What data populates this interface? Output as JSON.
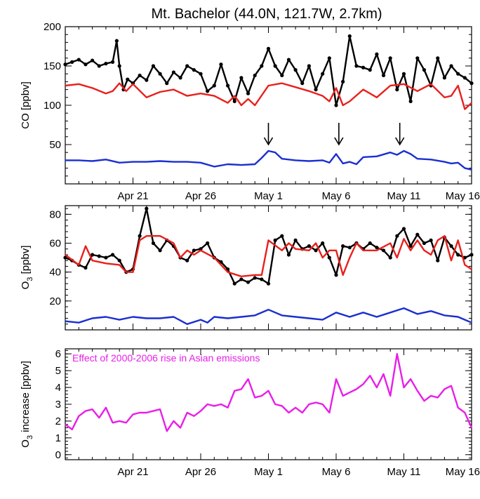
{
  "title": "Mt. Bachelor (44.0N, 121.7W, 2.7km)",
  "colors": {
    "observed": "#000000",
    "model_total": "#e8201c",
    "model_asian": "#1a2fd0",
    "effect": "#e81ee8"
  },
  "chart_data": [
    {
      "type": "line",
      "ylabel": "CO [ppbv]",
      "xlim": [
        0,
        30
      ],
      "ylim": [
        0,
        200
      ],
      "yticks": [
        50,
        100,
        150,
        200
      ],
      "xticks": [
        {
          "value": 5,
          "label": "Apr 21"
        },
        {
          "value": 10,
          "label": "Apr 26"
        },
        {
          "value": 15,
          "label": "May 1"
        },
        {
          "value": 20,
          "label": "May 6"
        },
        {
          "value": 25,
          "label": "May 11"
        },
        {
          "value": 30,
          "label": "May 16"
        }
      ],
      "annotations": [
        {
          "type": "arrow-down",
          "x": 15.0
        },
        {
          "type": "arrow-down",
          "x": 20.2
        },
        {
          "type": "arrow-down",
          "x": 24.7
        }
      ],
      "series": [
        {
          "color": "#000000",
          "markers": true,
          "x": [
            0,
            0.5,
            1,
            1.5,
            2,
            2.5,
            3,
            3.5,
            3.8,
            4,
            4.3,
            4.6,
            5,
            5.5,
            6,
            6.5,
            7,
            7.5,
            8,
            8.5,
            9,
            9.5,
            10,
            10.5,
            11,
            11.5,
            12,
            12.5,
            13,
            13.5,
            14,
            14.5,
            15,
            15.5,
            16,
            16.5,
            17,
            17.5,
            18,
            18.5,
            19,
            19.5,
            20,
            20.5,
            21,
            21.5,
            22,
            22.5,
            23,
            23.5,
            24,
            24.5,
            25,
            25.5,
            26,
            26.5,
            27,
            27.5,
            28,
            28.5,
            29,
            29.5,
            30
          ],
          "y": [
            152,
            155,
            158,
            152,
            157,
            150,
            153,
            155,
            182,
            150,
            120,
            133,
            128,
            138,
            132,
            150,
            140,
            128,
            142,
            135,
            150,
            145,
            140,
            118,
            125,
            152,
            125,
            105,
            135,
            115,
            138,
            150,
            172,
            150,
            138,
            158,
            145,
            128,
            150,
            120,
            140,
            160,
            100,
            130,
            188,
            150,
            148,
            145,
            165,
            138,
            160,
            120,
            140,
            105,
            160,
            145,
            125,
            160,
            135,
            150,
            140,
            135,
            128
          ]
        },
        {
          "color": "#e8201c",
          "markers": false,
          "x": [
            0,
            1,
            2,
            3,
            3.5,
            4,
            4.5,
            5,
            6,
            7,
            8,
            9,
            10,
            11,
            12,
            12.5,
            13,
            13.5,
            14,
            15,
            16,
            17,
            18,
            19,
            19.5,
            20,
            20.5,
            21,
            22,
            23,
            24,
            25,
            26,
            27,
            28,
            28.5,
            29,
            29.5,
            30
          ],
          "y": [
            125,
            127,
            122,
            115,
            118,
            128,
            118,
            127,
            110,
            117,
            120,
            112,
            115,
            112,
            103,
            112,
            100,
            108,
            100,
            125,
            128,
            123,
            118,
            112,
            105,
            122,
            100,
            105,
            120,
            110,
            125,
            127,
            118,
            127,
            110,
            112,
            125,
            95,
            103
          ]
        },
        {
          "color": "#1a2fd0",
          "markers": false,
          "x": [
            0,
            1,
            2,
            3,
            4,
            5,
            6,
            7,
            8,
            9,
            10,
            11,
            12,
            13,
            14,
            14.5,
            15,
            15.5,
            16,
            17,
            18,
            19,
            19.5,
            20,
            20.5,
            21,
            21.5,
            22,
            23,
            24,
            24.5,
            25,
            25.5,
            26,
            27,
            28,
            28.5,
            29,
            29.5,
            30
          ],
          "y": [
            30,
            30,
            29,
            31,
            27,
            28,
            28,
            29,
            28,
            28,
            27,
            22,
            25,
            24,
            25,
            33,
            42,
            40,
            32,
            30,
            29,
            30,
            27,
            38,
            26,
            28,
            25,
            34,
            35,
            40,
            37,
            42,
            38,
            32,
            31,
            28,
            26,
            27,
            20,
            18
          ]
        }
      ]
    },
    {
      "type": "line",
      "ylabel": "O",
      "ylabel_sub": "3",
      "ylabel_rest": " [ppbv]",
      "xlim": [
        0,
        30
      ],
      "ylim": [
        0,
        86
      ],
      "yticks": [
        20,
        40,
        60,
        80
      ],
      "xticks": [
        {
          "value": 5,
          "label": ""
        },
        {
          "value": 10,
          "label": ""
        },
        {
          "value": 15,
          "label": ""
        },
        {
          "value": 20,
          "label": ""
        },
        {
          "value": 25,
          "label": ""
        },
        {
          "value": 30,
          "label": ""
        }
      ],
      "series": [
        {
          "color": "#000000",
          "markers": true,
          "x": [
            0,
            0.5,
            1,
            1.5,
            2,
            2.5,
            3,
            3.5,
            4,
            4.5,
            5,
            5.5,
            6,
            6.5,
            7,
            7.5,
            8,
            8.5,
            9,
            9.5,
            10,
            10.5,
            11,
            11.5,
            12,
            12.5,
            13,
            13.5,
            14,
            14.5,
            15,
            15.5,
            16,
            16.5,
            17,
            17.5,
            18,
            18.5,
            19,
            19.5,
            20,
            20.5,
            21,
            21.5,
            22,
            22.5,
            23,
            23.5,
            24,
            24.5,
            25,
            25.5,
            26,
            26.5,
            27,
            27.5,
            28,
            28.5,
            29,
            29.5,
            30
          ],
          "y": [
            50,
            48,
            45,
            43,
            52,
            51,
            50,
            52,
            48,
            40,
            42,
            65,
            84,
            60,
            55,
            62,
            58,
            50,
            48,
            55,
            56,
            60,
            50,
            47,
            42,
            32,
            35,
            33,
            36,
            35,
            32,
            62,
            65,
            52,
            62,
            56,
            58,
            55,
            60,
            50,
            38,
            58,
            57,
            60,
            56,
            60,
            57,
            55,
            50,
            65,
            70,
            58,
            66,
            60,
            62,
            48,
            64,
            58,
            52,
            50,
            52
          ]
        },
        {
          "color": "#e8201c",
          "markers": false,
          "x": [
            0,
            1,
            1.5,
            2,
            3,
            4,
            4.5,
            5,
            5.5,
            6,
            7,
            8,
            8.5,
            9,
            9.5,
            10,
            11,
            12,
            13,
            14,
            14.5,
            15,
            16,
            16.5,
            17,
            18,
            18.5,
            19,
            19.5,
            20,
            20.5,
            21,
            21.5,
            22,
            23,
            24,
            24.5,
            25,
            25.5,
            26,
            26.5,
            27,
            27.5,
            28,
            28.5,
            29,
            29.5,
            30
          ],
          "y": [
            52,
            45,
            58,
            48,
            46,
            45,
            40,
            40,
            62,
            65,
            65,
            60,
            50,
            55,
            52,
            55,
            50,
            40,
            37,
            38,
            38,
            62,
            55,
            60,
            56,
            55,
            60,
            50,
            55,
            55,
            38,
            50,
            60,
            55,
            55,
            60,
            50,
            63,
            55,
            62,
            55,
            52,
            62,
            65,
            48,
            62,
            45,
            42
          ]
        },
        {
          "color": "#1a2fd0",
          "markers": false,
          "x": [
            0,
            1,
            2,
            3,
            4,
            5,
            6,
            7,
            8,
            9,
            10,
            10.5,
            11,
            12,
            13,
            14,
            15,
            16,
            17,
            18,
            19,
            20,
            21,
            22,
            23,
            24,
            25,
            26,
            27,
            28,
            29,
            29.5,
            30
          ],
          "y": [
            6,
            5,
            8,
            9,
            7,
            9,
            8,
            8,
            9,
            4,
            7,
            5,
            9,
            8,
            9,
            10,
            14,
            10,
            9,
            8,
            7,
            12,
            9,
            12,
            9,
            12,
            15,
            11,
            13,
            10,
            9,
            7,
            5
          ]
        }
      ]
    },
    {
      "type": "line",
      "ylabel": "O",
      "ylabel_sub": "3",
      "ylabel_rest": " increase [ppbv]",
      "xlim": [
        0,
        30
      ],
      "ylim": [
        -0.3,
        6.3
      ],
      "yticks": [
        0,
        1,
        2,
        3,
        4,
        5,
        6
      ],
      "xticks": [
        {
          "value": 5,
          "label": "Apr 21"
        },
        {
          "value": 10,
          "label": "Apr 26"
        },
        {
          "value": 15,
          "label": "May 1"
        },
        {
          "value": 20,
          "label": "May 6"
        },
        {
          "value": 25,
          "label": "May 11"
        },
        {
          "value": 30,
          "label": "May 16"
        }
      ],
      "annotation_text": "Effect of 2000-2006 rise in Asian emissions",
      "series": [
        {
          "color": "#e81ee8",
          "markers": false,
          "x": [
            0,
            0.5,
            1,
            1.5,
            2,
            2.5,
            3,
            3.5,
            4,
            4.5,
            5,
            5.5,
            6,
            6.5,
            7,
            7.5,
            8,
            8.5,
            9,
            9.5,
            10,
            10.5,
            11,
            11.5,
            12,
            12.5,
            13,
            13.5,
            14,
            14.5,
            15,
            15.5,
            16,
            16.5,
            17,
            17.5,
            18,
            18.5,
            19,
            19.5,
            20,
            20.5,
            21,
            21.5,
            22,
            22.5,
            23,
            23.5,
            24,
            24.5,
            25,
            25.5,
            26,
            26.5,
            27,
            27.5,
            28,
            28.5,
            29,
            29.5,
            30
          ],
          "y": [
            1.8,
            1.5,
            2.3,
            2.6,
            2.7,
            2.2,
            2.8,
            1.9,
            2.0,
            1.9,
            2.4,
            2.5,
            2.5,
            2.6,
            2.7,
            1.4,
            2.0,
            1.6,
            2.5,
            2.3,
            2.6,
            3.0,
            2.9,
            3.0,
            2.8,
            3.8,
            3.9,
            4.5,
            3.4,
            3.5,
            3.8,
            3.0,
            2.9,
            2.5,
            2.8,
            2.5,
            3.0,
            3.1,
            3.0,
            2.5,
            4.5,
            3.5,
            3.7,
            3.9,
            4.2,
            4.7,
            4.0,
            4.8,
            3.5,
            6.0,
            4.0,
            4.5,
            3.8,
            3.2,
            3.5,
            3.4,
            3.9,
            4.1,
            2.8,
            2.5,
            1.6
          ]
        }
      ]
    }
  ]
}
